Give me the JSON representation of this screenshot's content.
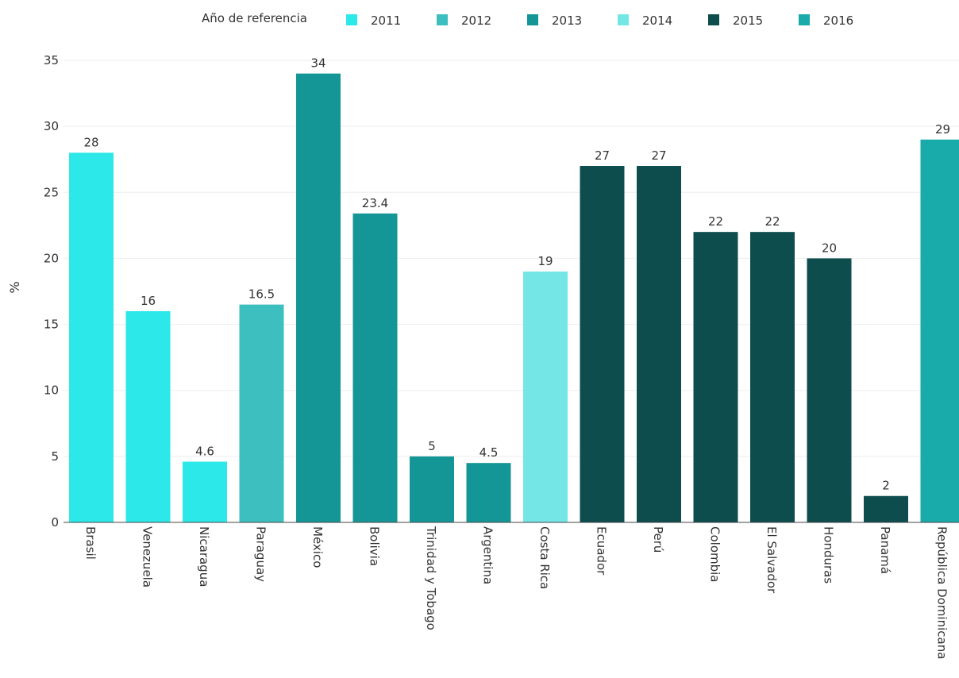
{
  "chart_data": {
    "type": "bar",
    "title": "",
    "xlabel": "",
    "ylabel": "%",
    "ylim": [
      0,
      35
    ],
    "yticks": [
      0,
      5,
      10,
      15,
      20,
      25,
      30,
      35
    ],
    "grid": true,
    "legend_position": "top",
    "legend_title": "Año de referencia",
    "legend": [
      {
        "label": "2011",
        "color": "#2de8e8"
      },
      {
        "label": "2012",
        "color": "#3ebfbf"
      },
      {
        "label": "2013",
        "color": "#159696"
      },
      {
        "label": "2014",
        "color": "#74e6e6"
      },
      {
        "label": "2015",
        "color": "#0d4d4d"
      },
      {
        "label": "2016",
        "color": "#19aaaa"
      }
    ],
    "bars": [
      {
        "category": "Brasil",
        "value": 28,
        "value_label": "28",
        "year": "2011"
      },
      {
        "category": "Venezuela",
        "value": 16,
        "value_label": "16",
        "year": "2011"
      },
      {
        "category": "Nicaragua",
        "value": 4.6,
        "value_label": "4.6",
        "year": "2011"
      },
      {
        "category": "Paraguay",
        "value": 16.5,
        "value_label": "16.5",
        "year": "2012"
      },
      {
        "category": "México",
        "value": 34,
        "value_label": "34",
        "year": "2013"
      },
      {
        "category": "Bolivia",
        "value": 23.4,
        "value_label": "23.4",
        "year": "2013"
      },
      {
        "category": "Trinidad y Tobago",
        "value": 5,
        "value_label": "5",
        "year": "2013"
      },
      {
        "category": "Argentina",
        "value": 4.5,
        "value_label": "4.5",
        "year": "2013"
      },
      {
        "category": "Costa Rica",
        "value": 19,
        "value_label": "19",
        "year": "2014"
      },
      {
        "category": "Ecuador",
        "value": 27,
        "value_label": "27",
        "year": "2015"
      },
      {
        "category": "Perú",
        "value": 27,
        "value_label": "27",
        "year": "2015"
      },
      {
        "category": "Colombia",
        "value": 22,
        "value_label": "22",
        "year": "2015"
      },
      {
        "category": "El Salvador",
        "value": 22,
        "value_label": "22",
        "year": "2015"
      },
      {
        "category": "Honduras",
        "value": 20,
        "value_label": "20",
        "year": "2015"
      },
      {
        "category": "Panamá",
        "value": 2,
        "value_label": "2",
        "year": "2015"
      },
      {
        "category": "República Dominicana",
        "value": 29,
        "value_label": "29",
        "year": "2016"
      }
    ]
  }
}
